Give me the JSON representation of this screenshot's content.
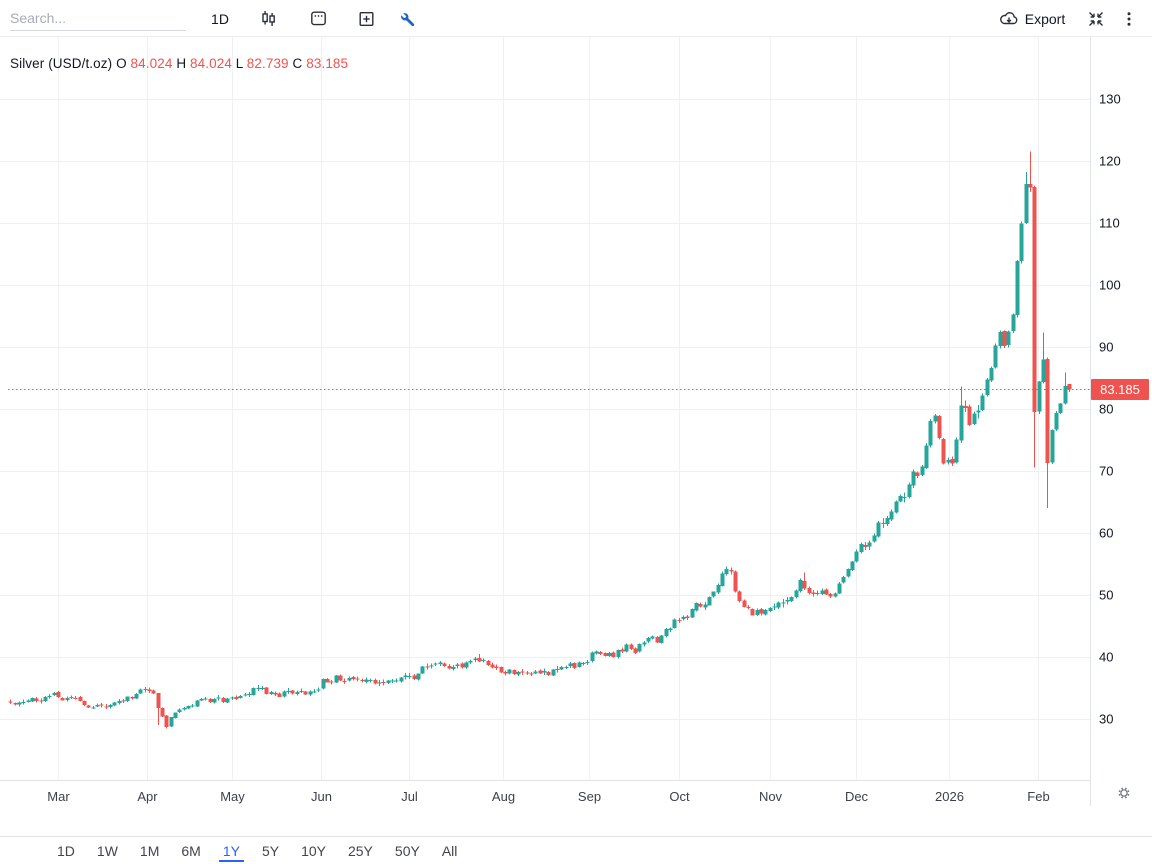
{
  "toolbar": {
    "search_placeholder": "Search...",
    "interval_label": "1D",
    "export_label": "Export"
  },
  "legend": {
    "symbol": "Silver (USD/t.oz)",
    "o_label": "O",
    "o": "84.024",
    "h_label": "H",
    "h": "84.024",
    "l_label": "L",
    "l": "82.739",
    "c_label": "C",
    "c": "83.185"
  },
  "last_price_label": "83.185",
  "range_tabs": {
    "items": [
      "1D",
      "1W",
      "1M",
      "6M",
      "1Y",
      "5Y",
      "10Y",
      "25Y",
      "50Y",
      "All"
    ],
    "active": "1Y"
  },
  "colors": {
    "up": "#26a69a",
    "down": "#ef5350",
    "accent_blue": "#2962ff",
    "wrench_blue": "#1c64c9",
    "grid": "#f0f0f0",
    "axis_border": "#e0e3eb",
    "price_text": "#131722",
    "time_text": "#3c4049",
    "icon": "#2a2e39",
    "gear": "#787b86"
  },
  "chart_data": {
    "type": "candlestick",
    "title": "Silver (USD/t.oz)",
    "interval": "1D",
    "last_close": 83.185,
    "last_ohlc": {
      "open": 84.024,
      "high": 84.024,
      "low": 82.739,
      "close": 83.185
    },
    "y_axis": {
      "ticks": [
        130,
        120,
        110,
        100,
        90,
        80,
        70,
        60,
        50,
        40,
        30
      ]
    },
    "x_axis": {
      "labels": [
        "Mar",
        "Apr",
        "May",
        "Jun",
        "Jul",
        "Aug",
        "Sep",
        "Oct",
        "Nov",
        "Dec",
        "2026",
        "Feb"
      ],
      "boundary_day_indices": [
        11.1,
        31.5,
        51.1,
        71.6,
        91.9,
        113.6,
        133.4,
        154.1,
        175.1,
        194.9,
        216.3,
        236.8
      ]
    },
    "num_days": 245,
    "close_anchors": [
      [
        0,
        32.7
      ],
      [
        5,
        33.1
      ],
      [
        10,
        33.7
      ],
      [
        13,
        33.3
      ],
      [
        16,
        32.8
      ],
      [
        19,
        31.7
      ],
      [
        22,
        32.3
      ],
      [
        25,
        32.9
      ],
      [
        28,
        33.6
      ],
      [
        30,
        34.3
      ],
      [
        32,
        34.5
      ],
      [
        33,
        34.2
      ],
      [
        34,
        31.4
      ],
      [
        36,
        29.1
      ],
      [
        38,
        30.6
      ],
      [
        40,
        32.2
      ],
      [
        43,
        32.8
      ],
      [
        47,
        32.9
      ],
      [
        50,
        33.3
      ],
      [
        53,
        33.9
      ],
      [
        57,
        34.7
      ],
      [
        59,
        34.3
      ],
      [
        62,
        33.9
      ],
      [
        66,
        34.8
      ],
      [
        68,
        34.4
      ],
      [
        70,
        34.1
      ],
      [
        71,
        35.0
      ],
      [
        72,
        36.0
      ],
      [
        76,
        36.6
      ],
      [
        80,
        36.2
      ],
      [
        84,
        35.9
      ],
      [
        88,
        36.4
      ],
      [
        90,
        36.5
      ],
      [
        93,
        37.0
      ],
      [
        96,
        38.3
      ],
      [
        99,
        38.6
      ],
      [
        102,
        37.9
      ],
      [
        106,
        39.1
      ],
      [
        108,
        39.8
      ],
      [
        111,
        38.5
      ],
      [
        113,
        37.3
      ],
      [
        117,
        37.8
      ],
      [
        120,
        37.6
      ],
      [
        123,
        37.2
      ],
      [
        126,
        37.9
      ],
      [
        129,
        38.7
      ],
      [
        130,
        38.4
      ],
      [
        132,
        39.2
      ],
      [
        134,
        40.3
      ],
      [
        137,
        40.4
      ],
      [
        139,
        40.2
      ],
      [
        141,
        41.4
      ],
      [
        143,
        41.6
      ],
      [
        144,
        41.1
      ],
      [
        146,
        41.9
      ],
      [
        148,
        43.3
      ],
      [
        149,
        42.9
      ],
      [
        152,
        45.0
      ],
      [
        153,
        45.9
      ],
      [
        154,
        45.6
      ],
      [
        156,
        46.5
      ],
      [
        158,
        48.1
      ],
      [
        159,
        48.0
      ],
      [
        161,
        49.3
      ],
      [
        163,
        51.8
      ],
      [
        165,
        54.0
      ],
      [
        166,
        53.7
      ],
      [
        167,
        50.2
      ],
      [
        168,
        48.7
      ],
      [
        169,
        48.1
      ],
      [
        170,
        48.4
      ],
      [
        171,
        46.2
      ],
      [
        172,
        47.1
      ],
      [
        175,
        48.0
      ],
      [
        177,
        48.3
      ],
      [
        179,
        49.0
      ],
      [
        180,
        50.0
      ],
      [
        182,
        52.3
      ],
      [
        183,
        51.1
      ],
      [
        185,
        50.3
      ],
      [
        187,
        50.9
      ],
      [
        189,
        49.9
      ],
      [
        191,
        51.7
      ],
      [
        192,
        53.4
      ],
      [
        194,
        55.9
      ],
      [
        196,
        57.6
      ],
      [
        197,
        57.2
      ],
      [
        199,
        60.2
      ],
      [
        200,
        61.6
      ],
      [
        201,
        61.1
      ],
      [
        203,
        63.9
      ],
      [
        205,
        66.3
      ],
      [
        206,
        66.0
      ],
      [
        208,
        69.4
      ],
      [
        209,
        69.0
      ],
      [
        210,
        71.3
      ],
      [
        211,
        73.6
      ],
      [
        212,
        77.5
      ],
      [
        213,
        79.4
      ],
      [
        214,
        74.8
      ],
      [
        215,
        71.6
      ],
      [
        216,
        72.3
      ],
      [
        217,
        71.7
      ],
      [
        218,
        74.9
      ],
      [
        219,
        80.9
      ],
      [
        220,
        80.1
      ],
      [
        221,
        77.7
      ],
      [
        223,
        80.2
      ],
      [
        224,
        82.3
      ],
      [
        225,
        85.2
      ],
      [
        226,
        86.6
      ],
      [
        227,
        90.0
      ],
      [
        228,
        92.9
      ],
      [
        229,
        90.4
      ],
      [
        230,
        92.1
      ],
      [
        231,
        95.3
      ],
      [
        232,
        103.9
      ],
      [
        233,
        109.8
      ],
      [
        234,
        116.4
      ],
      [
        235,
        115.7
      ],
      [
        236,
        79.5
      ],
      [
        237,
        84.4
      ],
      [
        238,
        87.9
      ],
      [
        239,
        71.2
      ],
      [
        240,
        76.6
      ],
      [
        241,
        79.3
      ],
      [
        242,
        80.9
      ],
      [
        243,
        83.6
      ],
      [
        244,
        83.185
      ]
    ],
    "open_overrides": {
      "0": 32.85,
      "244": 84.024
    },
    "wick_overrides": {
      "34": {
        "low": 29.0
      },
      "36": {
        "low": 28.5
      },
      "108": {
        "high": 40.5
      },
      "165": {
        "high": 54.6
      },
      "183": {
        "high": 53.6
      },
      "219": {
        "high": 83.6
      },
      "234": {
        "high": 118.2
      },
      "235": {
        "high": 121.5
      },
      "236": {
        "low": 70.6
      },
      "238": {
        "high": 92.3
      },
      "239": {
        "low": 64.0
      },
      "243": {
        "high": 85.9
      },
      "244": {
        "high": 84.024,
        "low": 82.739
      }
    }
  }
}
